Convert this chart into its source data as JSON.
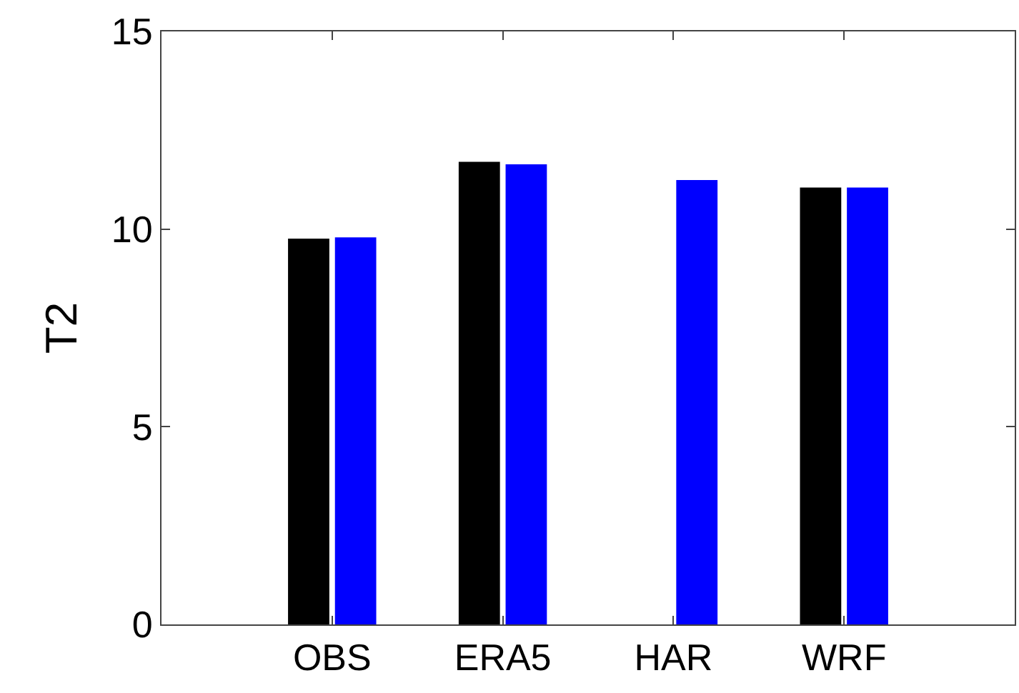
{
  "chart_data": {
    "type": "bar",
    "ylabel": "T2",
    "categories": [
      "OBS",
      "ERA5",
      "HAR",
      "WRF"
    ],
    "series": [
      {
        "color": "#000000",
        "values": [
          9.76,
          11.7,
          null,
          11.05
        ]
      },
      {
        "color": "#0000ff",
        "values": [
          9.79,
          11.64,
          11.24,
          11.05
        ]
      }
    ],
    "ylim": [
      0,
      15
    ],
    "yticks": [
      0,
      5,
      10,
      15
    ]
  }
}
